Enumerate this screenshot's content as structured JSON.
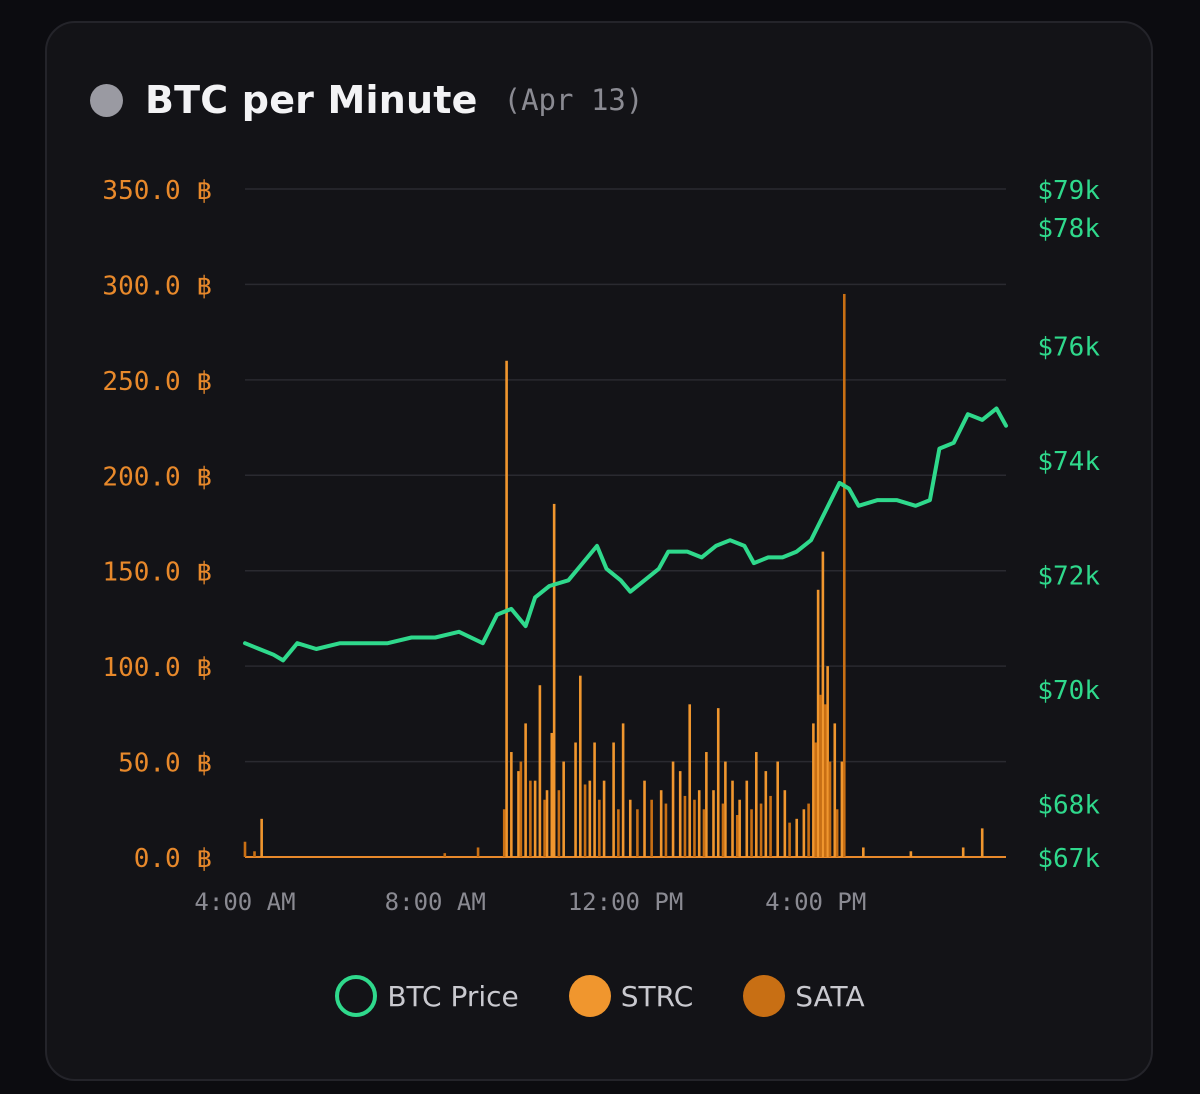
{
  "header": {
    "title": "BTC per Minute",
    "date_label": "(Apr 13)"
  },
  "chart_data": {
    "type": "bar",
    "title": "BTC per Minute",
    "subtitle": "(Apr 13)",
    "grid": true,
    "x_axis": {
      "unit": "hour of day (24h)",
      "range": [
        4,
        20
      ],
      "ticks": [
        {
          "value": 4,
          "label": "4:00 AM"
        },
        {
          "value": 8,
          "label": "8:00 AM"
        },
        {
          "value": 12,
          "label": "12:00 PM"
        },
        {
          "value": 16,
          "label": "4:00 PM"
        }
      ]
    },
    "y_axis_left": {
      "unit": "BTC",
      "range": [
        0,
        350
      ],
      "ticks": [
        {
          "value": 0,
          "label": "0.0 ฿"
        },
        {
          "value": 50,
          "label": "50.0 ฿"
        },
        {
          "value": 100,
          "label": "100.0 ฿"
        },
        {
          "value": 150,
          "label": "150.0 ฿"
        },
        {
          "value": 200,
          "label": "200.0 ฿"
        },
        {
          "value": 250,
          "label": "250.0 ฿"
        },
        {
          "value": 300,
          "label": "300.0 ฿"
        },
        {
          "value": 350,
          "label": "350.0 ฿"
        }
      ]
    },
    "y_axis_right": {
      "unit": "USD",
      "range": [
        67000,
        79000
      ],
      "scale": "non-uniform",
      "ticks": [
        {
          "value": 67000,
          "label": "$67k",
          "left_equiv": 0
        },
        {
          "value": 68000,
          "label": "$68k",
          "left_equiv": 28
        },
        {
          "value": 70000,
          "label": "$70k",
          "left_equiv": 88
        },
        {
          "value": 72000,
          "label": "$72k",
          "left_equiv": 148
        },
        {
          "value": 74000,
          "label": "$74k",
          "left_equiv": 208
        },
        {
          "value": 76000,
          "label": "$76k",
          "left_equiv": 268
        },
        {
          "value": 78000,
          "label": "$78k",
          "left_equiv": 330
        },
        {
          "value": 79000,
          "label": "$79k",
          "left_equiv": 350
        }
      ]
    },
    "legend_position": "bottom",
    "legend": [
      {
        "name": "BTC Price",
        "color": "#2fd98c",
        "style": "ring"
      },
      {
        "name": "STRC",
        "color": "#f0962e",
        "style": "filled"
      },
      {
        "name": "SATA",
        "color": "#c86f14",
        "style": "filled"
      }
    ],
    "series": [
      {
        "name": "BTC Price",
        "kind": "line",
        "axis": "right",
        "color": "#2fd98c",
        "points": [
          [
            4.0,
            70800
          ],
          [
            4.3,
            70700
          ],
          [
            4.6,
            70600
          ],
          [
            4.8,
            70500
          ],
          [
            5.1,
            70800
          ],
          [
            5.5,
            70700
          ],
          [
            6.0,
            70800
          ],
          [
            6.5,
            70800
          ],
          [
            7.0,
            70800
          ],
          [
            7.5,
            70900
          ],
          [
            8.0,
            70900
          ],
          [
            8.5,
            71000
          ],
          [
            9.0,
            70800
          ],
          [
            9.3,
            71300
          ],
          [
            9.6,
            71400
          ],
          [
            9.9,
            71100
          ],
          [
            10.1,
            71600
          ],
          [
            10.4,
            71800
          ],
          [
            10.8,
            71900
          ],
          [
            11.1,
            72200
          ],
          [
            11.4,
            72500
          ],
          [
            11.6,
            72100
          ],
          [
            11.9,
            71900
          ],
          [
            12.1,
            71700
          ],
          [
            12.4,
            71900
          ],
          [
            12.7,
            72100
          ],
          [
            12.9,
            72400
          ],
          [
            13.3,
            72400
          ],
          [
            13.6,
            72300
          ],
          [
            13.9,
            72500
          ],
          [
            14.2,
            72600
          ],
          [
            14.5,
            72500
          ],
          [
            14.7,
            72200
          ],
          [
            15.0,
            72300
          ],
          [
            15.3,
            72300
          ],
          [
            15.6,
            72400
          ],
          [
            15.9,
            72600
          ],
          [
            16.2,
            73100
          ],
          [
            16.5,
            73600
          ],
          [
            16.7,
            73500
          ],
          [
            16.9,
            73200
          ],
          [
            17.3,
            73300
          ],
          [
            17.7,
            73300
          ],
          [
            18.1,
            73200
          ],
          [
            18.4,
            73300
          ],
          [
            18.6,
            74200
          ],
          [
            18.9,
            74300
          ],
          [
            19.2,
            74800
          ],
          [
            19.5,
            74700
          ],
          [
            19.8,
            74900
          ],
          [
            20.0,
            74600
          ]
        ]
      },
      {
        "name": "STRC",
        "kind": "bar",
        "axis": "left",
        "color": "#f0962e",
        "points": [
          [
            4.35,
            20
          ],
          [
            9.5,
            260
          ],
          [
            9.6,
            55
          ],
          [
            9.75,
            45
          ],
          [
            9.9,
            70
          ],
          [
            10.1,
            40
          ],
          [
            10.2,
            90
          ],
          [
            10.35,
            35
          ],
          [
            10.45,
            65
          ],
          [
            10.5,
            185
          ],
          [
            10.7,
            50
          ],
          [
            10.95,
            60
          ],
          [
            11.05,
            95
          ],
          [
            11.25,
            40
          ],
          [
            11.35,
            60
          ],
          [
            11.55,
            40
          ],
          [
            11.75,
            60
          ],
          [
            11.95,
            70
          ],
          [
            12.1,
            30
          ],
          [
            12.4,
            40
          ],
          [
            12.75,
            35
          ],
          [
            13.0,
            50
          ],
          [
            13.15,
            45
          ],
          [
            13.35,
            80
          ],
          [
            13.55,
            35
          ],
          [
            13.7,
            55
          ],
          [
            13.85,
            35
          ],
          [
            13.95,
            78
          ],
          [
            14.1,
            50
          ],
          [
            14.25,
            40
          ],
          [
            14.4,
            30
          ],
          [
            14.55,
            40
          ],
          [
            14.75,
            55
          ],
          [
            14.95,
            45
          ],
          [
            15.2,
            50
          ],
          [
            15.35,
            35
          ],
          [
            15.6,
            20
          ],
          [
            15.75,
            25
          ],
          [
            15.95,
            70
          ],
          [
            16.05,
            140
          ],
          [
            16.15,
            160
          ],
          [
            16.25,
            100
          ],
          [
            16.4,
            70
          ],
          [
            16.55,
            50
          ],
          [
            17.0,
            5
          ],
          [
            18.0,
            3
          ],
          [
            19.1,
            5
          ],
          [
            19.5,
            15
          ]
        ]
      },
      {
        "name": "SATA",
        "kind": "bar",
        "axis": "left",
        "color": "#c86f14",
        "points": [
          [
            4.0,
            8
          ],
          [
            4.2,
            3
          ],
          [
            8.2,
            2
          ],
          [
            8.9,
            5
          ],
          [
            9.45,
            25
          ],
          [
            9.8,
            50
          ],
          [
            10.0,
            40
          ],
          [
            10.3,
            30
          ],
          [
            10.6,
            35
          ],
          [
            11.15,
            38
          ],
          [
            11.45,
            30
          ],
          [
            11.85,
            25
          ],
          [
            12.25,
            25
          ],
          [
            12.55,
            30
          ],
          [
            12.85,
            28
          ],
          [
            13.25,
            32
          ],
          [
            13.45,
            30
          ],
          [
            13.65,
            25
          ],
          [
            14.05,
            28
          ],
          [
            14.35,
            22
          ],
          [
            14.65,
            25
          ],
          [
            14.85,
            28
          ],
          [
            15.05,
            32
          ],
          [
            15.45,
            18
          ],
          [
            15.85,
            28
          ],
          [
            16.0,
            60
          ],
          [
            16.1,
            85
          ],
          [
            16.2,
            80
          ],
          [
            16.3,
            50
          ],
          [
            16.45,
            25
          ],
          [
            16.6,
            295
          ]
        ]
      }
    ]
  }
}
